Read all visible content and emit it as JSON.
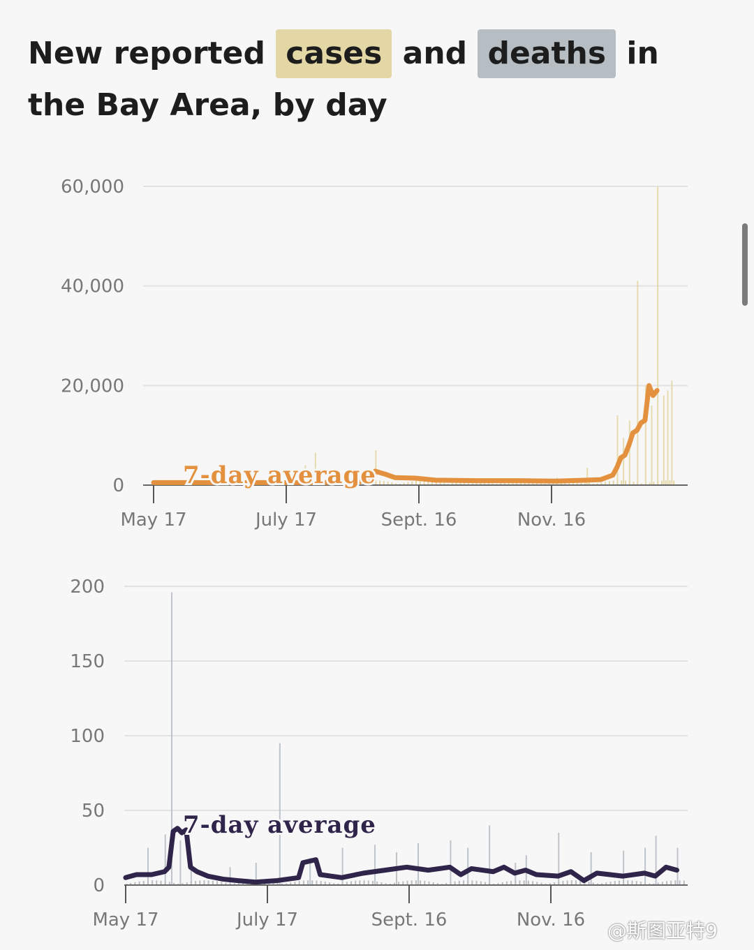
{
  "headline": {
    "part1": "New reported",
    "cases": "cases",
    "and": "and",
    "deaths": "deaths",
    "part2": "in the Bay Area, by day"
  },
  "watermark": "@斯图亚特9",
  "chart_data": [
    {
      "type": "bar",
      "name": "cases",
      "bar_color": "#e3d7a5",
      "line_color": "#e3913e",
      "annotation": "7-day average",
      "x_ticks": [
        "May 17",
        "July 17",
        "Sept. 16",
        "Nov. 16"
      ],
      "y_ticks": [
        "60,000",
        "40,000",
        "20,000",
        "0"
      ],
      "ylim": [
        0,
        60000
      ],
      "grid": true,
      "spikes": [
        [
          20,
          600
        ],
        [
          60,
          2500
        ],
        [
          75,
          4000
        ],
        [
          80,
          6500
        ],
        [
          110,
          7000
        ],
        [
          150,
          1500
        ],
        [
          160,
          1200
        ],
        [
          200,
          1500
        ],
        [
          215,
          3500
        ],
        [
          230,
          14000
        ],
        [
          233,
          9500
        ],
        [
          236,
          13000
        ],
        [
          240,
          41000
        ],
        [
          244,
          20000
        ],
        [
          247,
          16000
        ],
        [
          250,
          60000
        ],
        [
          253,
          18000
        ],
        [
          255,
          19000
        ],
        [
          257,
          21000
        ]
      ],
      "average": [
        [
          0,
          500
        ],
        [
          40,
          500
        ],
        [
          80,
          500
        ],
        [
          100,
          600
        ],
        [
          108,
          1000
        ],
        [
          110,
          2800
        ],
        [
          115,
          2200
        ],
        [
          120,
          1500
        ],
        [
          130,
          1400
        ],
        [
          140,
          1000
        ],
        [
          160,
          900
        ],
        [
          180,
          900
        ],
        [
          200,
          800
        ],
        [
          215,
          1000
        ],
        [
          222,
          1100
        ],
        [
          228,
          2000
        ],
        [
          230,
          3500
        ],
        [
          232,
          5500
        ],
        [
          234,
          6000
        ],
        [
          236,
          8000
        ],
        [
          238,
          10500
        ],
        [
          240,
          11000
        ],
        [
          242,
          12500
        ],
        [
          244,
          13000
        ],
        [
          246,
          20000
        ],
        [
          248,
          18000
        ],
        [
          250,
          19000
        ]
      ]
    },
    {
      "type": "bar",
      "name": "deaths",
      "bar_color": "#b7bec3",
      "line_color": "#2f2449",
      "annotation": "7-day average",
      "x_ticks": [
        "May 17",
        "July 17",
        "Sept. 16",
        "Nov. 16"
      ],
      "y_ticks": [
        "200",
        "150",
        "100",
        "50",
        "0"
      ],
      "ylim": [
        0,
        200
      ],
      "grid": true,
      "spikes": [
        [
          10,
          25
        ],
        [
          18,
          34
        ],
        [
          21,
          196
        ],
        [
          25,
          30
        ],
        [
          30,
          15
        ],
        [
          48,
          12
        ],
        [
          60,
          15
        ],
        [
          71,
          95
        ],
        [
          85,
          18
        ],
        [
          100,
          25
        ],
        [
          115,
          27
        ],
        [
          125,
          22
        ],
        [
          135,
          28
        ],
        [
          150,
          30
        ],
        [
          158,
          25
        ],
        [
          168,
          40
        ],
        [
          180,
          15
        ],
        [
          185,
          20
        ],
        [
          200,
          35
        ],
        [
          215,
          22
        ],
        [
          230,
          23
        ],
        [
          240,
          25
        ],
        [
          245,
          33
        ],
        [
          255,
          25
        ]
      ],
      "average": [
        [
          0,
          5
        ],
        [
          5,
          7
        ],
        [
          12,
          7
        ],
        [
          18,
          9
        ],
        [
          20,
          12
        ],
        [
          22,
          36
        ],
        [
          24,
          38
        ],
        [
          26,
          35
        ],
        [
          28,
          37
        ],
        [
          30,
          12
        ],
        [
          33,
          9
        ],
        [
          38,
          6
        ],
        [
          45,
          4
        ],
        [
          52,
          3
        ],
        [
          60,
          2
        ],
        [
          70,
          3
        ],
        [
          80,
          5
        ],
        [
          82,
          15
        ],
        [
          88,
          17
        ],
        [
          90,
          7
        ],
        [
          100,
          5
        ],
        [
          110,
          8
        ],
        [
          120,
          10
        ],
        [
          130,
          12
        ],
        [
          140,
          10
        ],
        [
          150,
          12
        ],
        [
          155,
          7
        ],
        [
          160,
          11
        ],
        [
          170,
          9
        ],
        [
          175,
          12
        ],
        [
          180,
          8
        ],
        [
          185,
          10
        ],
        [
          190,
          7
        ],
        [
          200,
          6
        ],
        [
          206,
          9
        ],
        [
          212,
          3
        ],
        [
          218,
          8
        ],
        [
          224,
          7
        ],
        [
          230,
          6
        ],
        [
          240,
          8
        ],
        [
          245,
          6
        ],
        [
          250,
          12
        ],
        [
          255,
          10
        ]
      ]
    }
  ]
}
